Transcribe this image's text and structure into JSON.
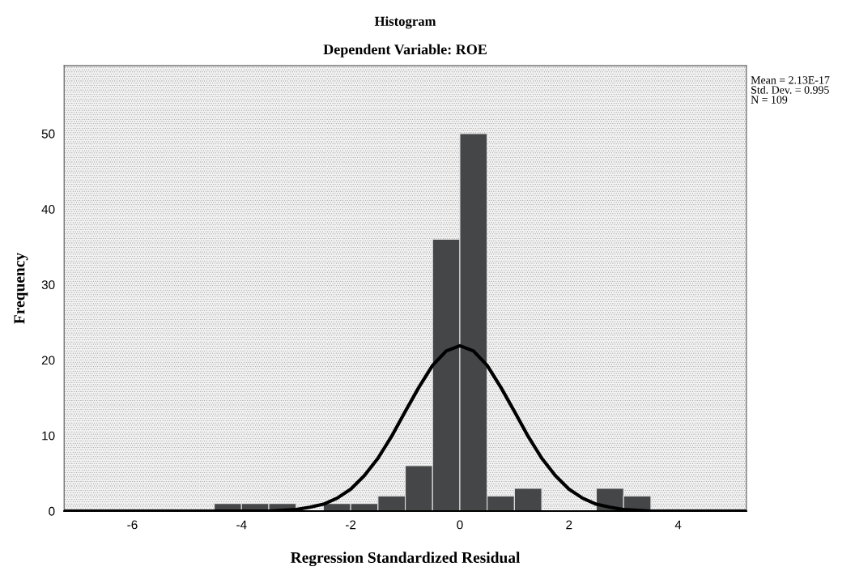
{
  "chart_data": {
    "type": "histogram",
    "title": "Histogram",
    "subtitle": "Dependent Variable: ROE",
    "xlabel": "Regression Standardized Residual",
    "ylabel": "Frequency",
    "bins": [
      -4.5,
      -4,
      -3.5,
      -3,
      -2.5,
      -2,
      -1.5,
      -1,
      -0.5,
      0,
      0.5,
      1,
      1.5,
      2,
      2.5,
      3,
      3.5
    ],
    "values": [
      1,
      1,
      1,
      0,
      1,
      1,
      2,
      6,
      36,
      50,
      2,
      3,
      0,
      0,
      3,
      2
    ],
    "color": "#444648",
    "series": [
      {
        "type": "line",
        "color": "#000000",
        "x": [
          -7.25,
          -4.5,
          -4,
          -3.5,
          -3,
          -2.75,
          -2.5,
          -2.25,
          -2,
          -1.75,
          -1.5,
          -1.25,
          -1,
          -0.75,
          -0.5,
          -0.25,
          0,
          0.25,
          0.5,
          0.75,
          1,
          1.25,
          1.5,
          1.75,
          2,
          2.25,
          2.5,
          2.75,
          3,
          3.5,
          4,
          5.25
        ],
        "values": [
          0,
          0,
          0,
          0,
          0.2,
          0.5,
          0.9,
          1.7,
          2.9,
          4.7,
          7.0,
          9.9,
          13.2,
          16.4,
          19.3,
          21.2,
          21.9,
          21.2,
          19.3,
          16.4,
          13.2,
          9.9,
          7.0,
          4.7,
          2.9,
          1.7,
          0.9,
          0.5,
          0.2,
          0,
          0,
          0
        ]
      }
    ],
    "xlim": [
      -7.25,
      5.25
    ],
    "xticks": [
      -6,
      -4,
      -2,
      0,
      2,
      4
    ],
    "ylim": [
      0,
      59
    ],
    "yticks": [
      0,
      10,
      20,
      30,
      40,
      50
    ],
    "grid": false,
    "legend": false,
    "annotations": [
      "Mean = 2.13E-17\nStd. Dev. = 0.995\nN = 109"
    ]
  }
}
